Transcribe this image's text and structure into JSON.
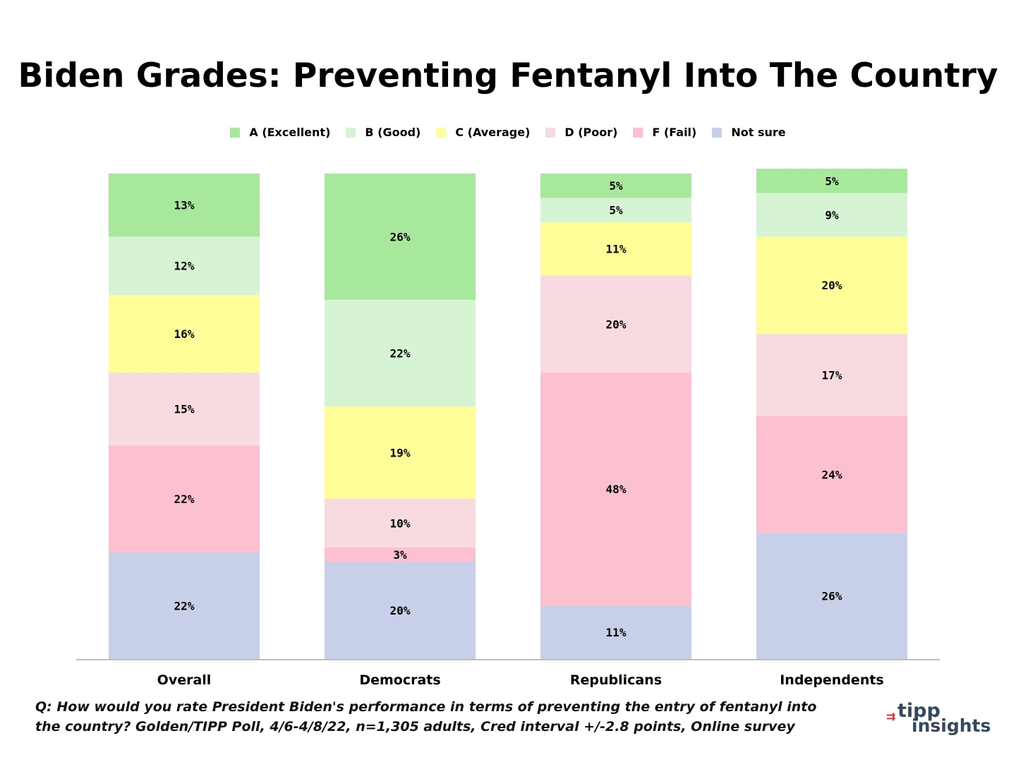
{
  "chart_data": {
    "type": "bar",
    "stacked": true,
    "title": "Biden Grades: Preventing Fentanyl Into The Country",
    "categories": [
      "Overall",
      "Democrats",
      "Republicans",
      "Independents"
    ],
    "series": [
      {
        "name": "A (Excellent)",
        "color": "#a8e89c",
        "values": [
          13,
          26,
          5,
          5
        ],
        "labels": [
          "13%",
          "26%",
          "5%",
          "5%"
        ]
      },
      {
        "name": "B (Good)",
        "color": "#d6f4d4",
        "values": [
          12,
          22,
          5,
          9
        ],
        "labels": [
          "12%",
          "22%",
          "5%",
          "9%"
        ]
      },
      {
        "name": "C (Average)",
        "color": "#fefd98",
        "values": [
          16,
          19,
          11,
          20
        ],
        "labels": [
          "16%",
          "19%",
          "11%",
          "20%"
        ]
      },
      {
        "name": "D (Poor)",
        "color": "#f8dae1",
        "values": [
          15,
          10,
          20,
          17
        ],
        "labels": [
          "15%",
          "10%",
          "20%",
          "17%"
        ]
      },
      {
        "name": "F (Fail)",
        "color": "#fdc0ce",
        "values": [
          22,
          3,
          48,
          24
        ],
        "labels": [
          "22%",
          "3%",
          "48%",
          "24%"
        ]
      },
      {
        "name": "Not sure",
        "color": "#c8cfe8",
        "values": [
          22,
          20,
          11,
          26
        ],
        "labels": [
          "22%",
          "20%",
          "11%",
          "26%"
        ]
      }
    ],
    "legend_position": "top",
    "xlabel": "",
    "ylabel": ""
  },
  "footnote": {
    "line1": "Q:  How would you rate President Biden's performance in terms of preventing the entry of fentanyl into",
    "line2": "the country? Golden/TIPP Poll, 4/6-4/8/22, n=1,305 adults, Cred interval +/-2.8 points, Online survey"
  },
  "brand": {
    "line1": "tipp",
    "line2": "insights",
    "arrow_glyph": "⇉",
    "color": "#34495e",
    "arrow_color": "#e0281e"
  }
}
